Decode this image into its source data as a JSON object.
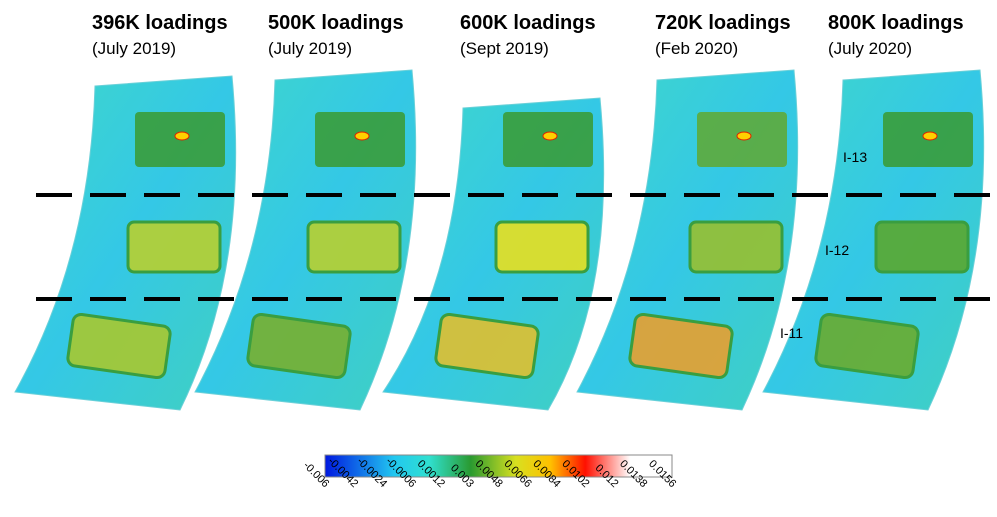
{
  "panels": [
    {
      "title": "396K loadings",
      "subtitle": "(July 2019)"
    },
    {
      "title": "500K loadings",
      "subtitle": "(July 2019)"
    },
    {
      "title": "600K loadings",
      "subtitle": "(Sept 2019)"
    },
    {
      "title": "720K loadings",
      "subtitle": "(Feb 2020)"
    },
    {
      "title": "800K loadings",
      "subtitle": "(July 2020)"
    }
  ],
  "region_labels": [
    "I-13",
    "I-12",
    "I-11"
  ],
  "colorbar": {
    "ticks": [
      "-0.006",
      "-0.0042",
      "-0.0024",
      "-0.0006",
      "0.0012",
      "0.003",
      "0.0048",
      "0.0066",
      "0.0084",
      "0.0102",
      "0.012",
      "0.0138",
      "0.0156"
    ]
  }
}
